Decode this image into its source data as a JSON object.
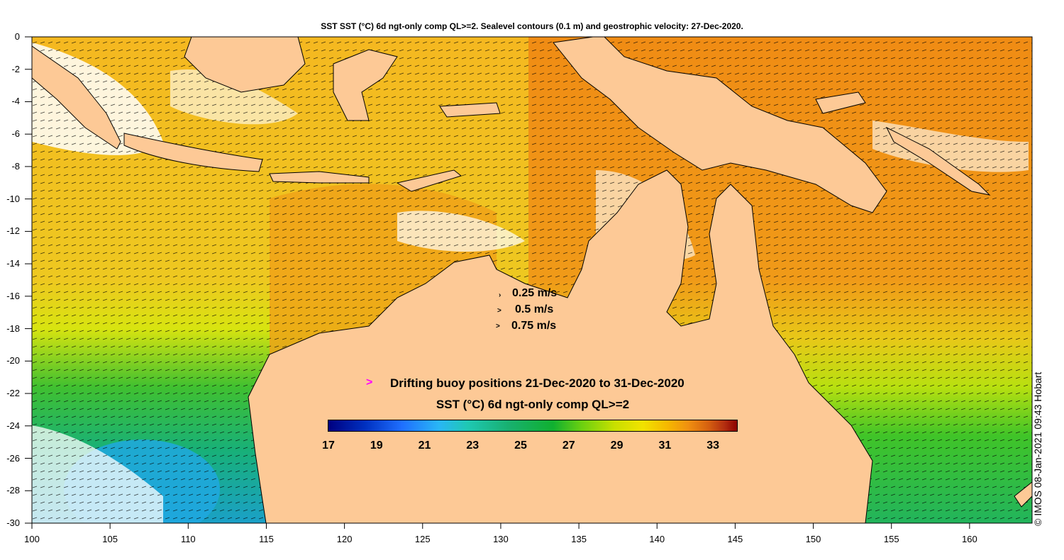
{
  "title": "SST SST (°C) 6d ngt-only comp QL>=2. Sealevel contours (0.1 m) and geostrophic velocity: 27-Dec-2020.",
  "map": {
    "lon_range": [
      100,
      164
    ],
    "lat_range": [
      -30,
      0
    ],
    "x_ticks": [
      "100",
      "105",
      "110",
      "115",
      "120",
      "125",
      "130",
      "135",
      "140",
      "145",
      "150",
      "155",
      "160"
    ],
    "y_ticks": [
      "0",
      "-2",
      "-4",
      "-6",
      "-8",
      "-10",
      "-12",
      "-14",
      "-16",
      "-18",
      "-20",
      "-22",
      "-24",
      "-26",
      "-28",
      "-30"
    ],
    "land_color": "#fdc996"
  },
  "velocity_legend": [
    {
      "label": "0.25 m/s",
      "arrow": "›"
    },
    {
      "label": "0.5 m/s",
      "arrow": ">"
    },
    {
      "label": "0.75 m/s",
      "arrow": ">"
    }
  ],
  "buoy_legend": {
    "marker": ">",
    "label": "Drifting buoy positions 21-Dec-2020 to 31-Dec-2020",
    "color": "#ff00ff"
  },
  "colorbar": {
    "title": "SST (°C) 6d ngt-only comp QL>=2",
    "range": [
      17,
      34
    ],
    "ticks": [
      "17",
      "19",
      "21",
      "23",
      "25",
      "27",
      "29",
      "31",
      "33"
    ]
  },
  "credit": "© IMOS 08-Jan-2021 09:43 Hobart"
}
